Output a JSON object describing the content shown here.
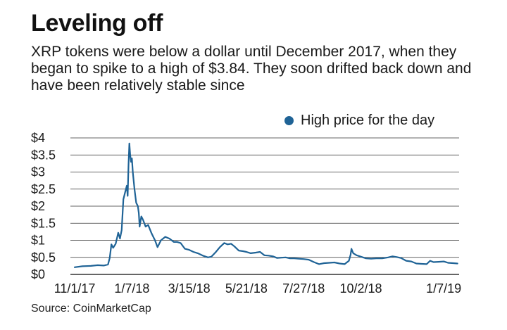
{
  "title": "Leveling off",
  "subtitle": "XRP tokens were below a dollar until December 2017, when they began to spike to a high of $3.84. They soon drifted back down and have been relatively stable since",
  "source": "Source: CoinMarketCap",
  "colors": {
    "line": "#1f6396",
    "grid": "#333333"
  },
  "chart_data": {
    "type": "line",
    "title": "Leveling off",
    "ylim": [
      0,
      4
    ],
    "xlim": [
      "2017-10-27",
      "2019-01-25"
    ],
    "grid": "horizontal",
    "legend_position": "top-right",
    "y_ticks": [
      {
        "value": 0,
        "label": "$0"
      },
      {
        "value": 0.5,
        "label": "$0.5"
      },
      {
        "value": 1,
        "label": "$1"
      },
      {
        "value": 1.5,
        "label": "$1.5"
      },
      {
        "value": 2,
        "label": "$2"
      },
      {
        "value": 2.5,
        "label": "$2.5"
      },
      {
        "value": 3,
        "label": "$3"
      },
      {
        "value": 3.5,
        "label": "$3.5"
      },
      {
        "value": 4,
        "label": "$4"
      }
    ],
    "x_ticks": [
      {
        "value": "2017-11-01",
        "label": "11/1/17"
      },
      {
        "value": "2018-01-07",
        "label": "1/7/18"
      },
      {
        "value": "2018-03-15",
        "label": "3/15/18"
      },
      {
        "value": "2018-05-21",
        "label": "5/21/18"
      },
      {
        "value": "2018-07-27",
        "label": "7/27/18"
      },
      {
        "value": "2018-10-02",
        "label": "10/2/18"
      },
      {
        "value": "2019-01-07",
        "label": "1/7/19"
      }
    ],
    "series": [
      {
        "name": "High price for the day",
        "points": [
          [
            "2017-11-01",
            0.21
          ],
          [
            "2017-11-10",
            0.24
          ],
          [
            "2017-11-20",
            0.25
          ],
          [
            "2017-11-28",
            0.27
          ],
          [
            "2017-12-05",
            0.26
          ],
          [
            "2017-12-10",
            0.29
          ],
          [
            "2017-12-12",
            0.48
          ],
          [
            "2017-12-14",
            0.88
          ],
          [
            "2017-12-16",
            0.78
          ],
          [
            "2017-12-19",
            0.9
          ],
          [
            "2017-12-22",
            1.22
          ],
          [
            "2017-12-24",
            1.05
          ],
          [
            "2017-12-26",
            1.3
          ],
          [
            "2017-12-28",
            2.2
          ],
          [
            "2017-12-30",
            2.4
          ],
          [
            "2018-01-01",
            2.6
          ],
          [
            "2018-01-02",
            2.3
          ],
          [
            "2018-01-03",
            3.2
          ],
          [
            "2018-01-04",
            3.84
          ],
          [
            "2018-01-05",
            3.5
          ],
          [
            "2018-01-06",
            3.3
          ],
          [
            "2018-01-07",
            3.4
          ],
          [
            "2018-01-08",
            3.0
          ],
          [
            "2018-01-10",
            2.5
          ],
          [
            "2018-01-12",
            2.1
          ],
          [
            "2018-01-14",
            2.0
          ],
          [
            "2018-01-15",
            1.8
          ],
          [
            "2018-01-16",
            1.4
          ],
          [
            "2018-01-18",
            1.7
          ],
          [
            "2018-01-20",
            1.6
          ],
          [
            "2018-01-23",
            1.4
          ],
          [
            "2018-01-26",
            1.45
          ],
          [
            "2018-01-30",
            1.2
          ],
          [
            "2018-02-03",
            1.0
          ],
          [
            "2018-02-06",
            0.8
          ],
          [
            "2018-02-10",
            1.0
          ],
          [
            "2018-02-15",
            1.1
          ],
          [
            "2018-02-20",
            1.05
          ],
          [
            "2018-02-25",
            0.95
          ],
          [
            "2018-03-01",
            0.95
          ],
          [
            "2018-03-05",
            0.92
          ],
          [
            "2018-03-10",
            0.75
          ],
          [
            "2018-03-15",
            0.72
          ],
          [
            "2018-03-20",
            0.66
          ],
          [
            "2018-03-25",
            0.62
          ],
          [
            "2018-03-31",
            0.55
          ],
          [
            "2018-04-06",
            0.5
          ],
          [
            "2018-04-10",
            0.52
          ],
          [
            "2018-04-15",
            0.65
          ],
          [
            "2018-04-20",
            0.8
          ],
          [
            "2018-04-25",
            0.92
          ],
          [
            "2018-04-29",
            0.88
          ],
          [
            "2018-05-03",
            0.9
          ],
          [
            "2018-05-07",
            0.82
          ],
          [
            "2018-05-12",
            0.7
          ],
          [
            "2018-05-17",
            0.68
          ],
          [
            "2018-05-21",
            0.66
          ],
          [
            "2018-05-26",
            0.62
          ],
          [
            "2018-06-01",
            0.64
          ],
          [
            "2018-06-06",
            0.66
          ],
          [
            "2018-06-11",
            0.56
          ],
          [
            "2018-06-16",
            0.55
          ],
          [
            "2018-06-21",
            0.53
          ],
          [
            "2018-06-26",
            0.48
          ],
          [
            "2018-07-01",
            0.49
          ],
          [
            "2018-07-06",
            0.5
          ],
          [
            "2018-07-11",
            0.47
          ],
          [
            "2018-07-16",
            0.47
          ],
          [
            "2018-07-21",
            0.46
          ],
          [
            "2018-07-27",
            0.45
          ],
          [
            "2018-08-02",
            0.43
          ],
          [
            "2018-08-08",
            0.36
          ],
          [
            "2018-08-14",
            0.3
          ],
          [
            "2018-08-20",
            0.33
          ],
          [
            "2018-08-26",
            0.34
          ],
          [
            "2018-09-01",
            0.35
          ],
          [
            "2018-09-07",
            0.32
          ],
          [
            "2018-09-13",
            0.3
          ],
          [
            "2018-09-18",
            0.4
          ],
          [
            "2018-09-20",
            0.58
          ],
          [
            "2018-09-21",
            0.75
          ],
          [
            "2018-09-23",
            0.62
          ],
          [
            "2018-09-27",
            0.56
          ],
          [
            "2018-10-02",
            0.52
          ],
          [
            "2018-10-08",
            0.47
          ],
          [
            "2018-10-14",
            0.46
          ],
          [
            "2018-10-20",
            0.47
          ],
          [
            "2018-10-27",
            0.47
          ],
          [
            "2018-11-03",
            0.5
          ],
          [
            "2018-11-08",
            0.53
          ],
          [
            "2018-11-13",
            0.51
          ],
          [
            "2018-11-18",
            0.48
          ],
          [
            "2018-11-24",
            0.4
          ],
          [
            "2018-11-30",
            0.38
          ],
          [
            "2018-12-06",
            0.32
          ],
          [
            "2018-12-12",
            0.31
          ],
          [
            "2018-12-18",
            0.3
          ],
          [
            "2018-12-22",
            0.4
          ],
          [
            "2018-12-26",
            0.36
          ],
          [
            "2019-01-01",
            0.37
          ],
          [
            "2019-01-07",
            0.38
          ],
          [
            "2019-01-12",
            0.34
          ],
          [
            "2019-01-18",
            0.33
          ],
          [
            "2019-01-23",
            0.32
          ]
        ]
      }
    ]
  }
}
